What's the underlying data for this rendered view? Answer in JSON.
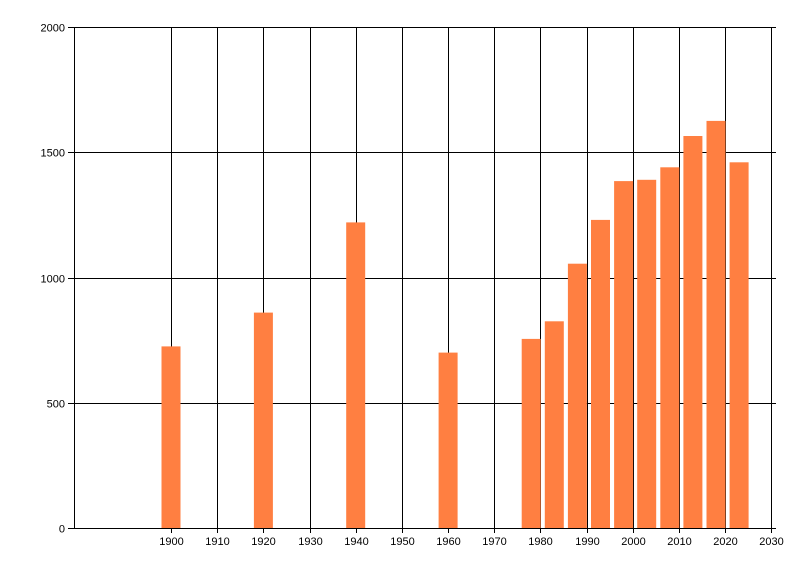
{
  "chart_data": {
    "type": "bar",
    "title": "",
    "xlabel": "",
    "ylabel": "",
    "x": [
      1900,
      1920,
      1940,
      1960,
      1978,
      1983,
      1988,
      1993,
      1998,
      2003,
      2008,
      2013,
      2018,
      2023
    ],
    "values": [
      725,
      860,
      1220,
      700,
      755,
      825,
      1055,
      1230,
      1385,
      1390,
      1440,
      1565,
      1625,
      1460
    ],
    "xlim": [
      1879,
      2031
    ],
    "ylim": [
      0,
      2000
    ],
    "x_ticks": [
      "1900",
      "1910",
      "1920",
      "1930",
      "1940",
      "1950",
      "1960",
      "1970",
      "1980",
      "1990",
      "2000",
      "2010",
      "2020",
      "2030"
    ],
    "y_ticks": [
      "0",
      "500",
      "1000",
      "1500",
      "2000"
    ],
    "grid": true,
    "bar_color": "#ff7f41"
  }
}
